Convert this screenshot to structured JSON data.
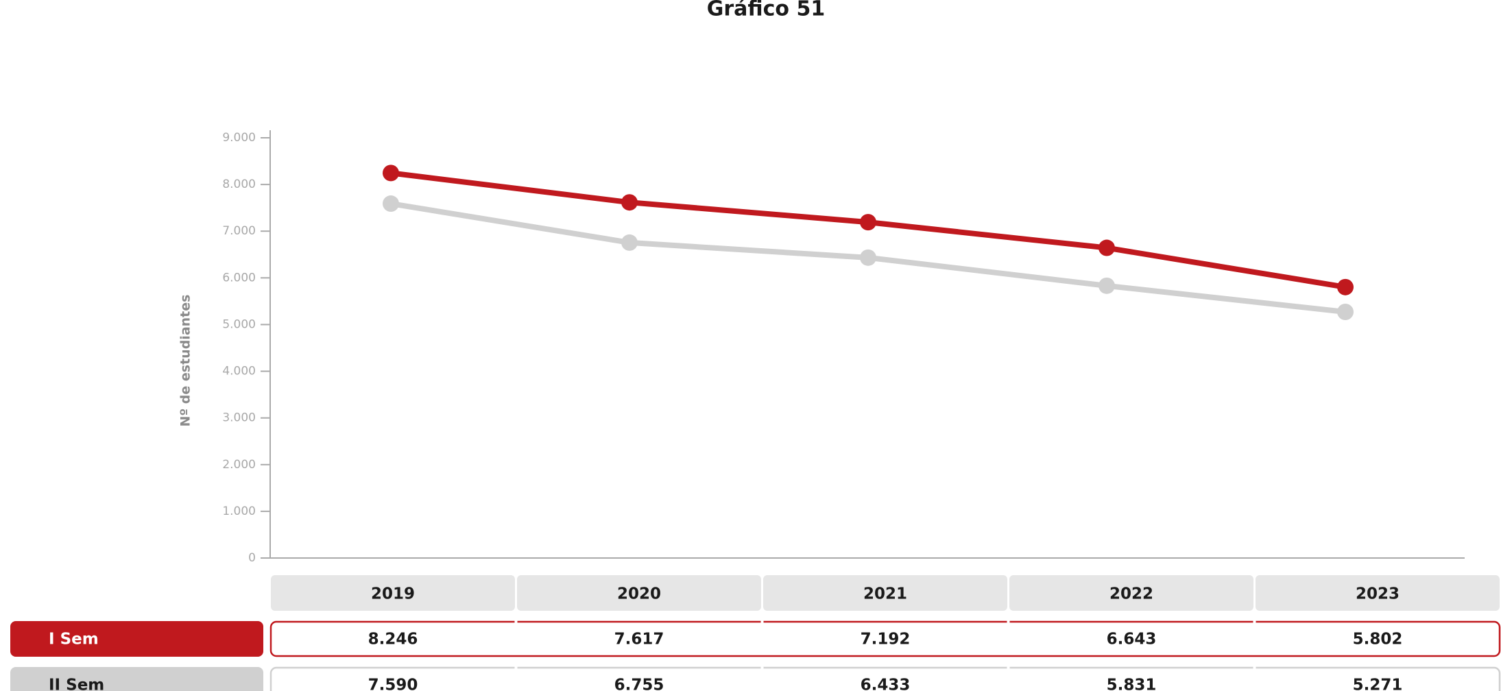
{
  "chart_data": {
    "type": "line",
    "title": "Gráfico 51",
    "ylabel": "Nº de estudiantes",
    "categories": [
      "2019",
      "2020",
      "2021",
      "2022",
      "2023"
    ],
    "series": [
      {
        "name": "I Sem",
        "color": "#c0191e",
        "values": [
          8246,
          7617,
          7192,
          6643,
          5802
        ],
        "value_labels": [
          "8.246",
          "7.617",
          "7.192",
          "6.643",
          "5.802"
        ]
      },
      {
        "name": "II Sem",
        "color": "#d0d0d0",
        "values": [
          7590,
          6755,
          6433,
          5831,
          5271
        ],
        "value_labels": [
          "7.590",
          "6.755",
          "6.433",
          "5.831",
          "5.271"
        ]
      }
    ],
    "ylim": [
      0,
      9000
    ],
    "yticks": [
      0,
      {
        "value": 1000,
        "label": "1.000"
      },
      {
        "value": 2000,
        "label": "2.000"
      },
      {
        "value": 3000,
        "label": "3.000"
      },
      {
        "value": 4000,
        "label": "4.000"
      },
      {
        "value": 5000,
        "label": "5.000"
      },
      {
        "value": 6000,
        "label": "6.000"
      },
      {
        "value": 7000,
        "label": "7.000"
      },
      {
        "value": 8000,
        "label": "8.000"
      },
      {
        "value": 9000,
        "label": "9.000"
      }
    ],
    "grid": false
  }
}
